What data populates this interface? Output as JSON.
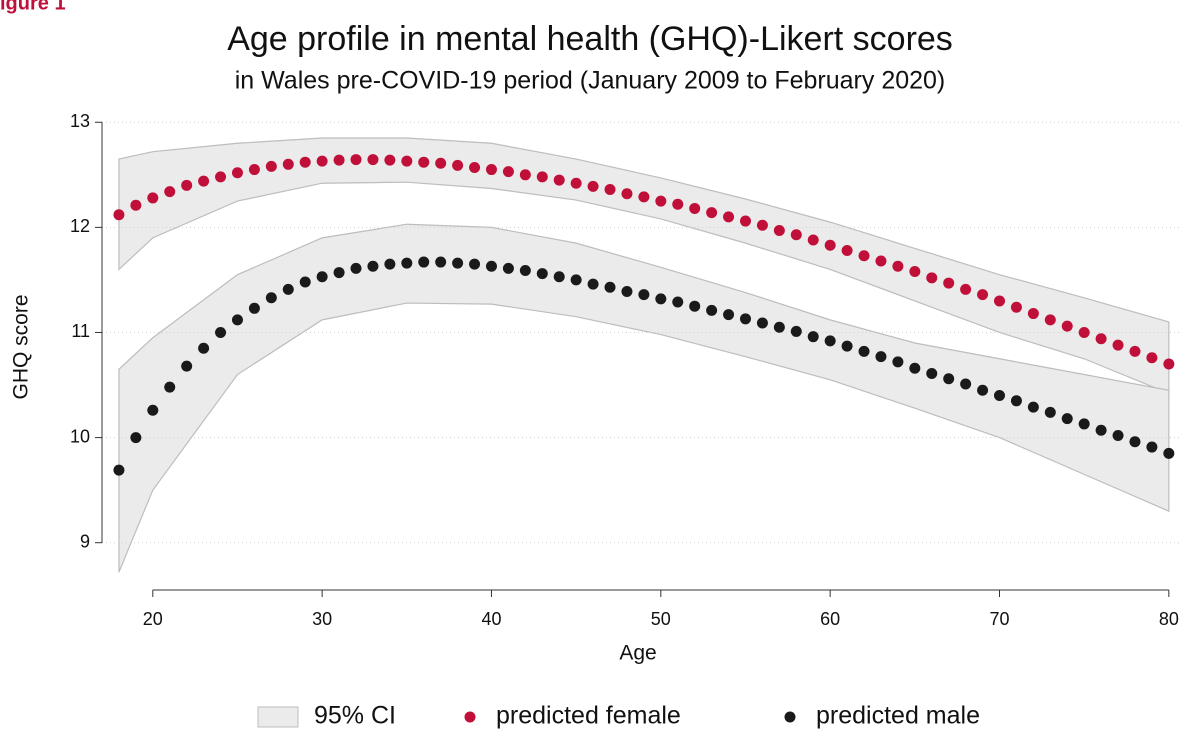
{
  "figure_label": "igure 1",
  "chart_data": {
    "type": "scatter",
    "title": "Age profile in mental health (GHQ)-Likert scores",
    "subtitle": "in Wales pre-COVID-19 period (January 2009 to February 2020)",
    "x_label": "Age",
    "y_label": "GHQ score",
    "xlim": [
      17,
      80.6
    ],
    "ylim": [
      8.55,
      13.05
    ],
    "xticks": [
      20,
      30,
      40,
      50,
      60,
      70,
      80
    ],
    "yticks": [
      9,
      10,
      11,
      12,
      13
    ],
    "grid": true,
    "legend": "bottom",
    "x": [
      18,
      19,
      20,
      21,
      22,
      23,
      24,
      25,
      26,
      27,
      28,
      29,
      30,
      31,
      32,
      33,
      34,
      35,
      36,
      37,
      38,
      39,
      40,
      41,
      42,
      43,
      44,
      45,
      46,
      47,
      48,
      49,
      50,
      51,
      52,
      53,
      54,
      55,
      56,
      57,
      58,
      59,
      60,
      61,
      62,
      63,
      64,
      65,
      66,
      67,
      68,
      69,
      70,
      71,
      72,
      73,
      74,
      75,
      76,
      77,
      78,
      79,
      80
    ],
    "series": [
      {
        "name": "predicted female",
        "color": "#c0103a",
        "values": [
          12.12,
          12.21,
          12.28,
          12.34,
          12.4,
          12.44,
          12.48,
          12.52,
          12.55,
          12.58,
          12.6,
          12.62,
          12.63,
          12.64,
          12.645,
          12.645,
          12.64,
          12.63,
          12.62,
          12.61,
          12.59,
          12.57,
          12.55,
          12.53,
          12.5,
          12.48,
          12.45,
          12.42,
          12.39,
          12.36,
          12.32,
          12.29,
          12.25,
          12.22,
          12.18,
          12.14,
          12.1,
          12.06,
          12.02,
          11.97,
          11.93,
          11.88,
          11.83,
          11.78,
          11.73,
          11.68,
          11.63,
          11.58,
          11.52,
          11.47,
          11.41,
          11.36,
          11.3,
          11.24,
          11.18,
          11.12,
          11.06,
          11.0,
          10.94,
          10.88,
          10.82,
          10.76,
          10.7
        ]
      },
      {
        "name": "predicted male",
        "color": "#1a1a1a",
        "values": [
          9.69,
          10.0,
          10.26,
          10.48,
          10.68,
          10.85,
          11.0,
          11.12,
          11.23,
          11.33,
          11.41,
          11.48,
          11.53,
          11.57,
          11.61,
          11.63,
          11.65,
          11.66,
          11.67,
          11.67,
          11.66,
          11.65,
          11.63,
          11.61,
          11.59,
          11.56,
          11.53,
          11.5,
          11.46,
          11.43,
          11.39,
          11.36,
          11.32,
          11.29,
          11.25,
          11.21,
          11.17,
          11.13,
          11.09,
          11.05,
          11.01,
          10.96,
          10.92,
          10.87,
          10.82,
          10.77,
          10.72,
          10.66,
          10.61,
          10.56,
          10.51,
          10.45,
          10.4,
          10.35,
          10.29,
          10.24,
          10.18,
          10.13,
          10.07,
          10.02,
          9.96,
          9.91,
          9.85
        ]
      }
    ],
    "ci": {
      "name": "95% CI",
      "color": "#ebebeb",
      "edge_color": "#bdbdbd",
      "x": [
        18,
        20,
        25,
        30,
        35,
        40,
        45,
        50,
        55,
        60,
        65,
        70,
        75,
        80
      ],
      "bands": [
        {
          "upper": [
            12.65,
            12.72,
            12.8,
            12.85,
            12.85,
            12.8,
            12.65,
            12.47,
            12.27,
            12.05,
            11.8,
            11.55,
            11.33,
            11.1
          ],
          "lower": [
            11.6,
            11.9,
            12.25,
            12.42,
            12.43,
            12.37,
            12.26,
            12.08,
            11.85,
            11.6,
            11.3,
            11.0,
            10.75,
            10.42
          ]
        },
        {
          "upper": [
            10.65,
            10.95,
            11.55,
            11.9,
            12.03,
            12.0,
            11.85,
            11.62,
            11.38,
            11.12,
            10.9,
            10.75,
            10.6,
            10.45
          ],
          "lower": [
            8.72,
            9.5,
            10.6,
            11.12,
            11.28,
            11.27,
            11.15,
            10.98,
            10.77,
            10.55,
            10.28,
            10.0,
            9.65,
            9.3
          ]
        }
      ]
    }
  }
}
